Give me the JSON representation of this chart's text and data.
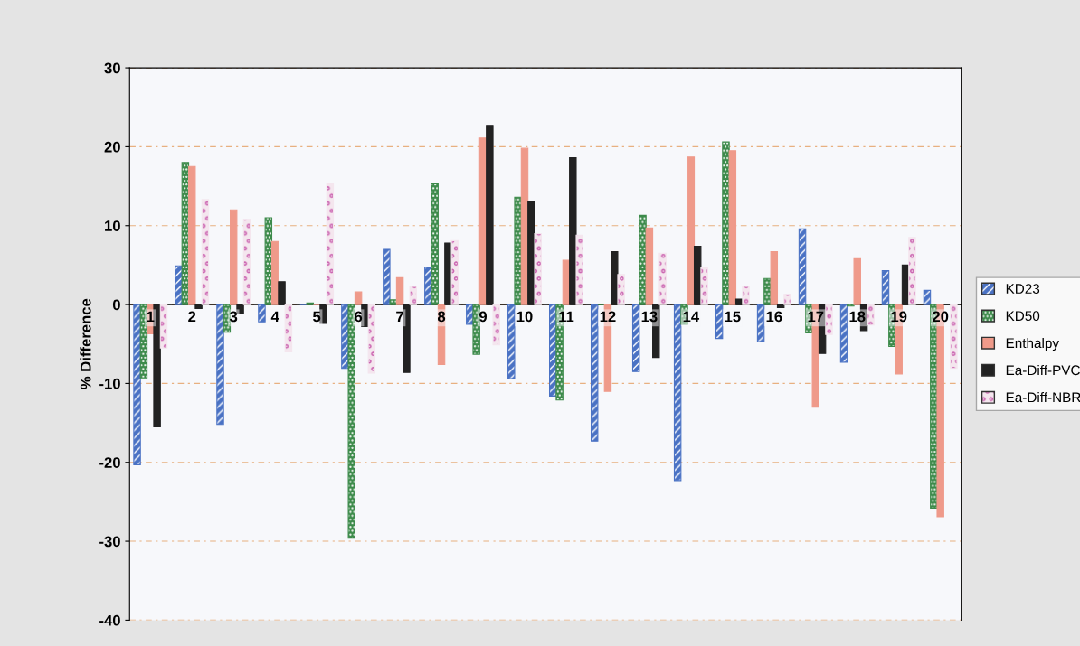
{
  "chart_data": {
    "type": "bar",
    "ylabel": "% Difference",
    "categories": [
      "1",
      "2",
      "3",
      "4",
      "5",
      "6",
      "7",
      "8",
      "9",
      "10",
      "11",
      "12",
      "13",
      "14",
      "15",
      "16",
      "17",
      "18",
      "19",
      "20"
    ],
    "series": [
      {
        "name": "KD23",
        "color": "#4a72c4",
        "values": [
          -20.3,
          4.9,
          -15.2,
          -2.2,
          0,
          -8.1,
          7.0,
          4.7,
          -2.5,
          -9.4,
          -11.6,
          -17.3,
          -8.5,
          -22.3,
          -4.3,
          -4.7,
          9.6,
          -7.3,
          4.3,
          1.8
        ]
      },
      {
        "name": "KD50",
        "color": "#3c8a4a",
        "values": [
          -9.3,
          18.0,
          -3.5,
          11.0,
          0.2,
          -29.6,
          0.6,
          15.3,
          -6.3,
          13.6,
          -12.1,
          0,
          11.3,
          -2.5,
          20.6,
          3.3,
          -3.6,
          -0.2,
          -5.3,
          -25.8
        ]
      },
      {
        "name": "Enthalpy",
        "color": "#ef9a8a",
        "values": [
          -3.7,
          17.5,
          12.0,
          8.0,
          0,
          1.6,
          3.4,
          -7.6,
          21.1,
          19.8,
          5.6,
          -11.0,
          9.7,
          18.7,
          19.5,
          6.7,
          -13.0,
          5.8,
          -8.8,
          -26.9
        ]
      },
      {
        "name": "Ea-Diff-PVC",
        "color": "#222222",
        "values": [
          -15.5,
          -0.5,
          -1.2,
          2.9,
          -2.4,
          -2.8,
          -8.6,
          7.8,
          22.7,
          13.1,
          18.6,
          6.7,
          -6.7,
          7.4,
          0.7,
          -0.4,
          -6.2,
          -3.3,
          5.0,
          0
        ]
      },
      {
        "name": "Ea-Diff-NBR",
        "color": "#f4e6ee",
        "values": [
          -5.5,
          13.3,
          10.8,
          -6.0,
          15.3,
          -8.7,
          2.3,
          8.1,
          -5.1,
          9.0,
          8.8,
          3.8,
          6.5,
          4.7,
          2.3,
          1.3,
          -3.8,
          -2.6,
          8.5,
          -8.1
        ]
      }
    ],
    "ylim": [
      -40,
      30
    ],
    "yticks": [
      -40,
      -30,
      -20,
      -10,
      0,
      10,
      20,
      30
    ],
    "grid": "y",
    "legend": "right"
  }
}
